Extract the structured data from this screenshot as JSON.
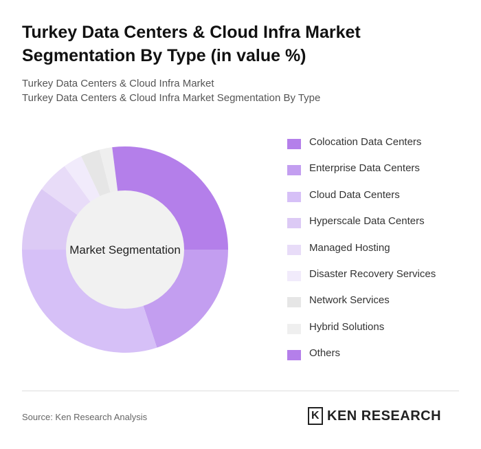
{
  "chart_data": {
    "type": "donut",
    "title": "Turkey Data Centers & Cloud Infra Market Segmentation By Type (in value %)",
    "subtitle": [
      "Turkey Data Centers & Cloud Infra Market",
      "Turkey Data Centers & Cloud Infra Market Segmentation By Type"
    ],
    "center_label": "Market Segmentation",
    "categories": [
      "Colocation Data Centers",
      "Enterprise Data Centers",
      "Cloud Data Centers",
      "Hyperscale Data Centers",
      "Managed Hosting",
      "Disaster Recovery Services",
      "Network Services",
      "Hybrid Solutions",
      "Others"
    ],
    "values": [
      25,
      20,
      30,
      10,
      5,
      3,
      3,
      2,
      2
    ],
    "colors": [
      "#b47fea",
      "#c39ef0",
      "#d6c0f7",
      "#dccaf5",
      "#e8dcf8",
      "#f1ebfb",
      "#e6e6e6",
      "#efefef",
      "#b47fea"
    ],
    "source": "Source: Ken Research Analysis",
    "logo": "KEN RESEARCH"
  }
}
